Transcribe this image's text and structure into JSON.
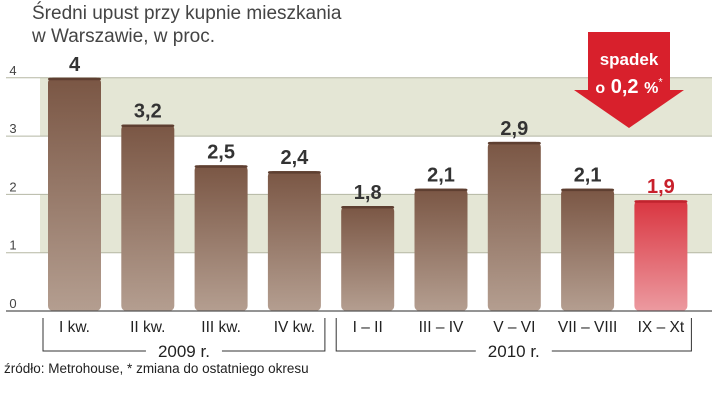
{
  "title_lines": [
    "Średni upust przy kupnie mieszkania",
    "w Warszawie, w proc."
  ],
  "source": "źródło: Metrohouse, * zmiana do ostatniego okresu",
  "badge": {
    "line1": "spadek",
    "prefix": "o",
    "value": "0,2",
    "unit": "%",
    "mark": "*"
  },
  "colors": {
    "bar": "#7d5a48",
    "highlight": "#d1323b",
    "band": "#e4e6d5",
    "badge": "#d8202c"
  },
  "chart_data": {
    "type": "bar",
    "categories": [
      "I kw.",
      "II kw.",
      "III kw.",
      "IV kw.",
      "I – II",
      "III – IV",
      "V – VI",
      "VII – VIII",
      "IX – Xt"
    ],
    "values": [
      4,
      3.2,
      2.5,
      2.4,
      1.8,
      2.1,
      2.9,
      2.1,
      1.9
    ],
    "value_labels": [
      "4",
      "3,2",
      "2,5",
      "2,4",
      "1,8",
      "2,1",
      "2,9",
      "2,1",
      "1,9"
    ],
    "highlight_index": 8,
    "groups": [
      {
        "label": "2009 r.",
        "from": 0,
        "to": 3
      },
      {
        "label": "2010 r.",
        "from": 4,
        "to": 8
      }
    ],
    "yticks": [
      0,
      1,
      2,
      3,
      4
    ],
    "ylim": [
      0,
      4.3
    ],
    "grid": true,
    "xlabel": "",
    "ylabel": ""
  }
}
